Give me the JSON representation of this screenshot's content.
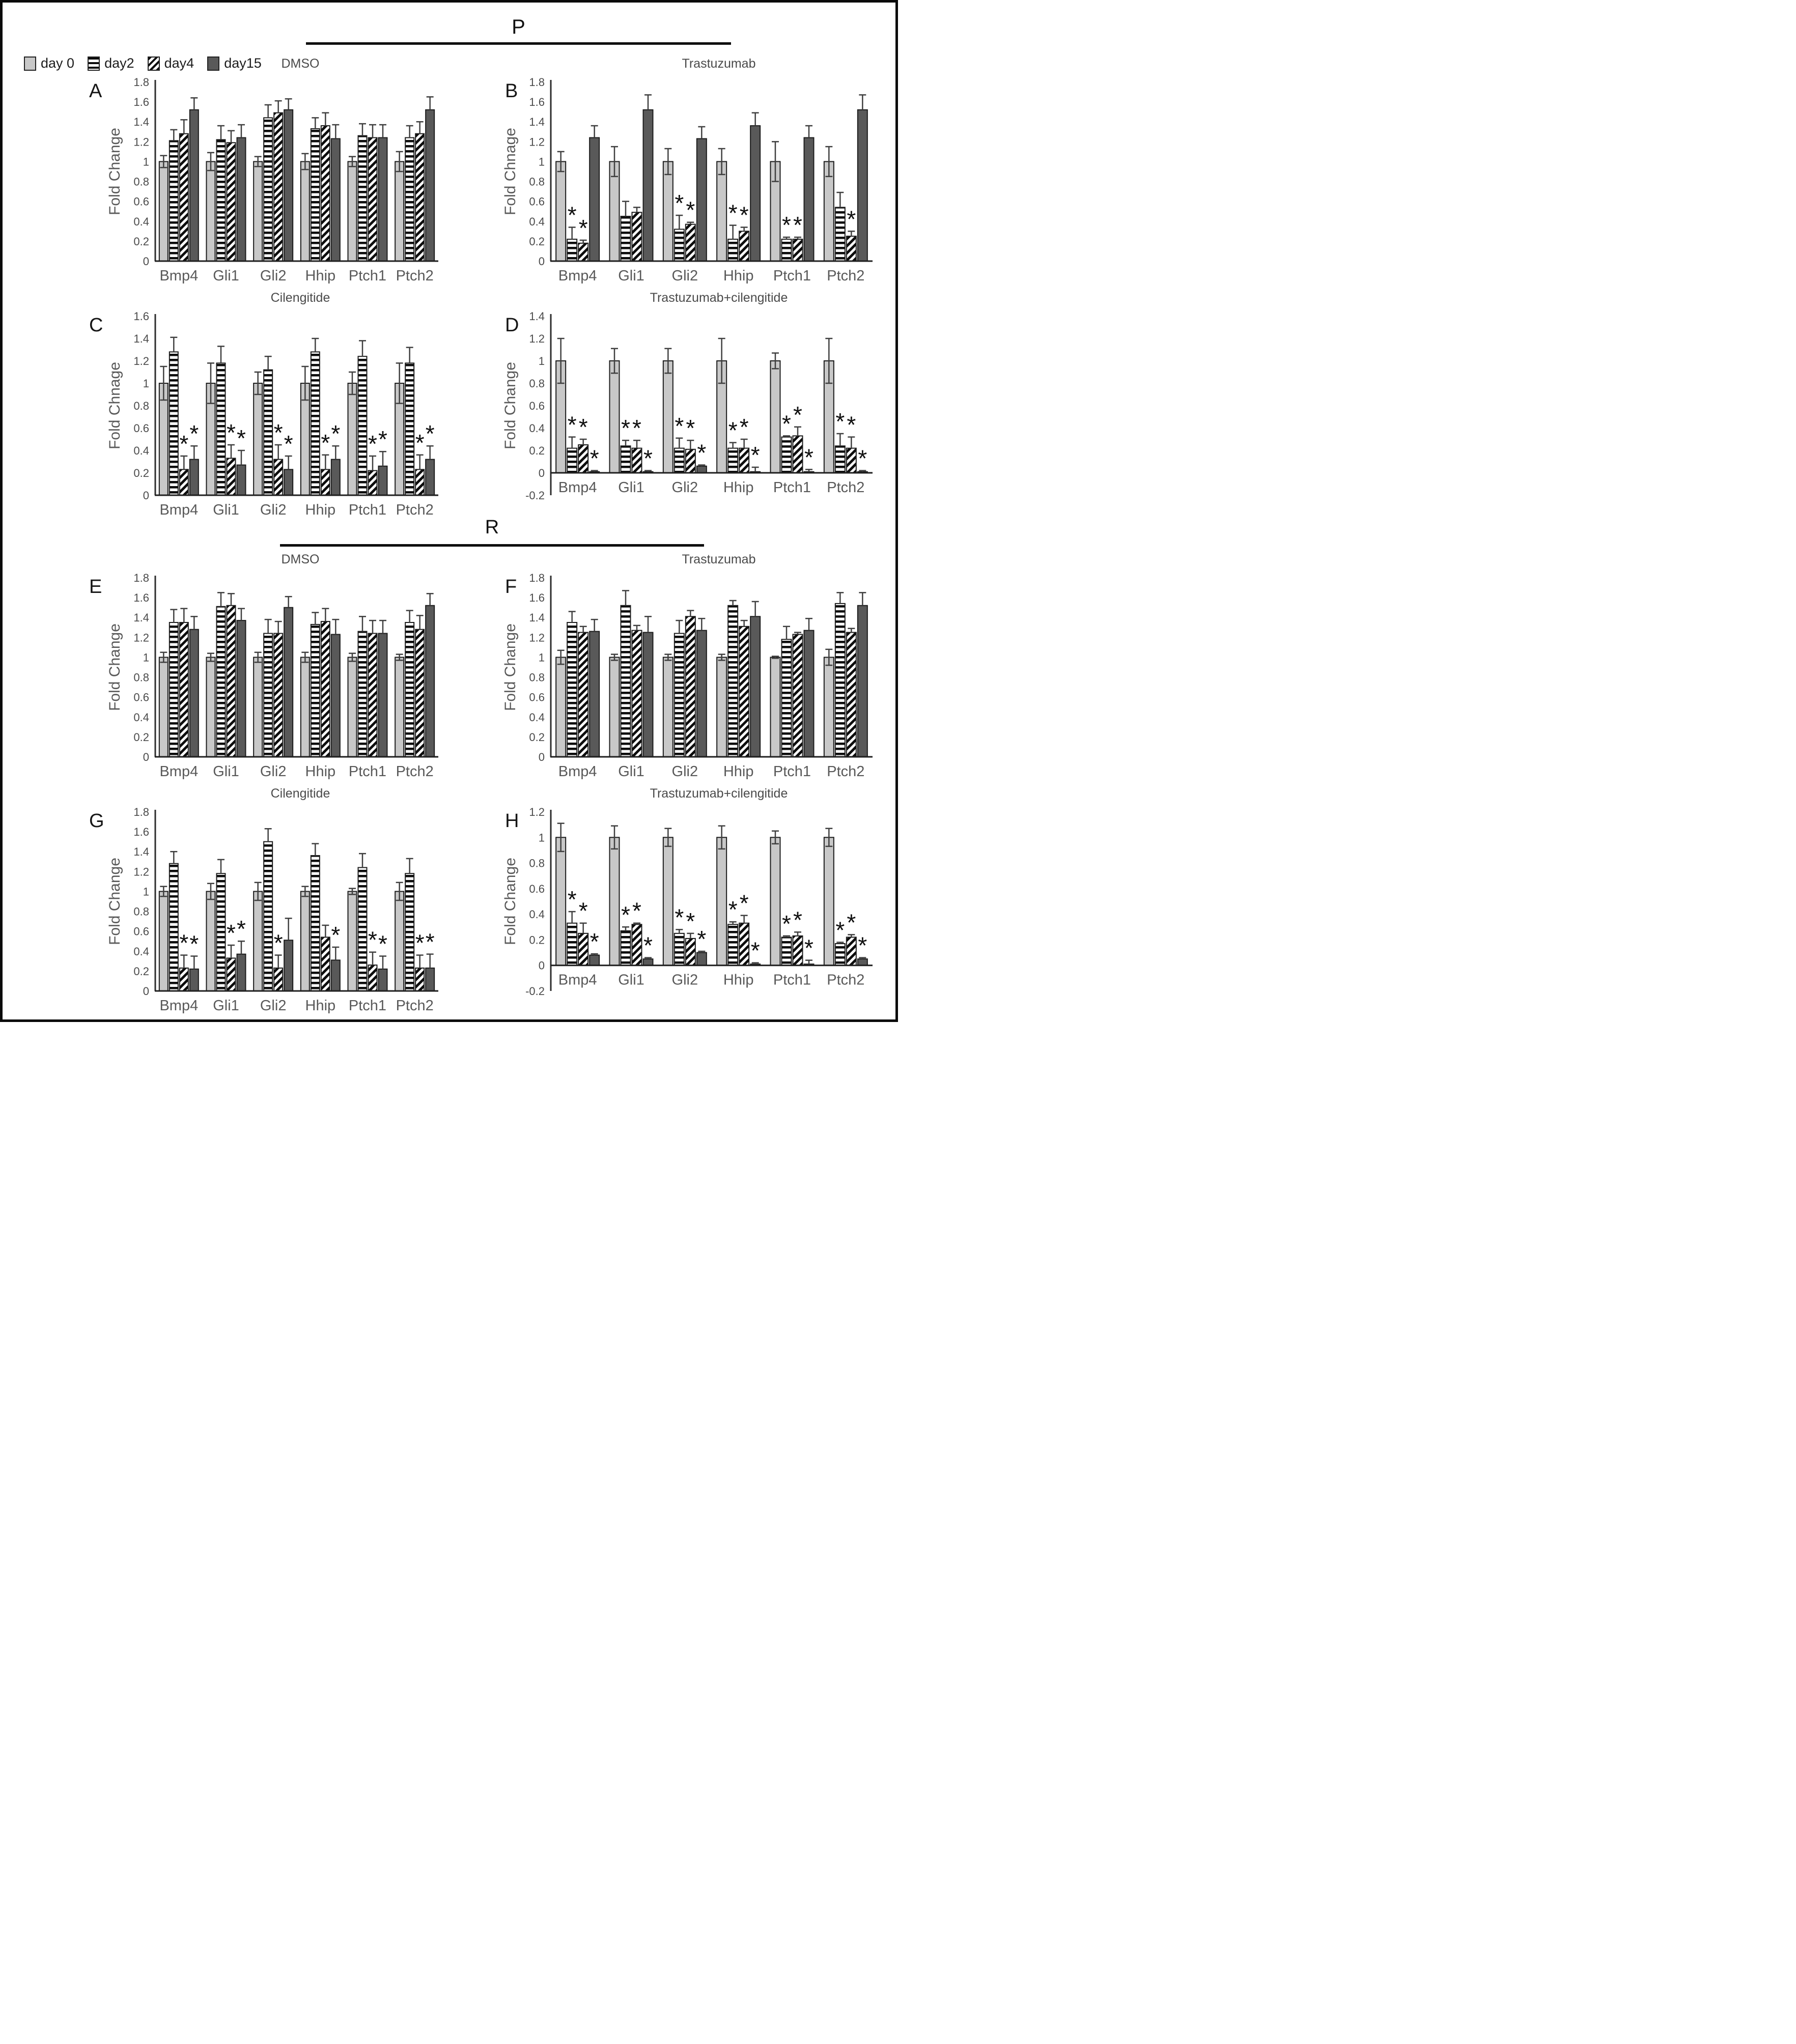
{
  "legend": {
    "items": [
      {
        "label": "day 0",
        "swatch": "solid-light"
      },
      {
        "label": "day2",
        "swatch": "horizontal-stripes"
      },
      {
        "label": "day4",
        "swatch": "diagonal-stripes"
      },
      {
        "label": "day15",
        "swatch": "solid-dark"
      }
    ]
  },
  "sections": [
    {
      "label": "P"
    },
    {
      "label": "R"
    }
  ],
  "colors": {
    "day0_fill": "#c8c8c8",
    "day15_fill": "#595959",
    "stripe": "#0d0d0d",
    "bar_border": "#1c1c1c",
    "axis": "#2d2d2d",
    "error_bar": "#3f3f3f",
    "tick_text": "#4a4a4a",
    "label_text": "#595959",
    "star": "#101010"
  },
  "chart_data": [
    {
      "id": "A",
      "title": "DMSO",
      "type": "bar",
      "ylabel": "Fold Change",
      "ylim": [
        0,
        1.8
      ],
      "ystep": 0.2,
      "grid": false,
      "legend_position": "top-left-figure",
      "categories": [
        "Bmp4",
        "Gli1",
        "Gli2",
        "Hhip",
        "Ptch1",
        "Ptch2"
      ],
      "series": [
        {
          "name": "day 0",
          "values": [
            1.0,
            1.0,
            1.0,
            1.0,
            1.0,
            1.0
          ],
          "errors": [
            0.06,
            0.09,
            0.05,
            0.08,
            0.05,
            0.1
          ],
          "sig": [
            0,
            0,
            0,
            0,
            0,
            0
          ]
        },
        {
          "name": "day2",
          "values": [
            1.21,
            1.22,
            1.44,
            1.33,
            1.26,
            1.24
          ],
          "errors": [
            0.11,
            0.14,
            0.13,
            0.11,
            0.12,
            0.12
          ],
          "sig": [
            0,
            0,
            0,
            0,
            0,
            0
          ]
        },
        {
          "name": "day4",
          "values": [
            1.28,
            1.19,
            1.49,
            1.36,
            1.24,
            1.28
          ],
          "errors": [
            0.14,
            0.12,
            0.12,
            0.13,
            0.13,
            0.12
          ],
          "sig": [
            0,
            0,
            0,
            0,
            0,
            0
          ]
        },
        {
          "name": "day15",
          "values": [
            1.52,
            1.24,
            1.52,
            1.23,
            1.24,
            1.52
          ],
          "errors": [
            0.12,
            0.13,
            0.11,
            0.14,
            0.13,
            0.13
          ],
          "sig": [
            0,
            0,
            0,
            0,
            0,
            0
          ]
        }
      ]
    },
    {
      "id": "B",
      "title": "Trastuzumab",
      "type": "bar",
      "ylabel": "Fold Chnage",
      "ylim": [
        0,
        1.8
      ],
      "ystep": 0.2,
      "grid": false,
      "categories": [
        "Bmp4",
        "Gli1",
        "Gli2",
        "Hhip",
        "Ptch1",
        "Ptch2"
      ],
      "series": [
        {
          "name": "day 0",
          "values": [
            1.0,
            1.0,
            1.0,
            1.0,
            1.0,
            1.0
          ],
          "errors": [
            0.1,
            0.15,
            0.13,
            0.13,
            0.2,
            0.15
          ],
          "sig": [
            0,
            0,
            0,
            0,
            0,
            0
          ]
        },
        {
          "name": "day2",
          "values": [
            0.22,
            0.45,
            0.32,
            0.22,
            0.22,
            0.54
          ],
          "errors": [
            0.12,
            0.15,
            0.14,
            0.14,
            0.02,
            0.15
          ],
          "sig": [
            1,
            0,
            1,
            1,
            1,
            0
          ]
        },
        {
          "name": "day4",
          "values": [
            0.18,
            0.49,
            0.37,
            0.3,
            0.22,
            0.25
          ],
          "errors": [
            0.03,
            0.05,
            0.02,
            0.04,
            0.02,
            0.05
          ],
          "sig": [
            1,
            0,
            1,
            1,
            1,
            1
          ]
        },
        {
          "name": "day15",
          "values": [
            1.24,
            1.52,
            1.23,
            1.36,
            1.24,
            1.52
          ],
          "errors": [
            0.12,
            0.15,
            0.12,
            0.13,
            0.12,
            0.15
          ],
          "sig": [
            0,
            0,
            0,
            0,
            0,
            0
          ]
        }
      ]
    },
    {
      "id": "C",
      "title": "Cilengitide",
      "type": "bar",
      "ylabel": "Fold Chnage",
      "ylim": [
        0,
        1.6
      ],
      "ystep": 0.2,
      "grid": false,
      "categories": [
        "Bmp4",
        "Gli1",
        "Gli2",
        "Hhip",
        "Ptch1",
        "Ptch2"
      ],
      "series": [
        {
          "name": "day 0",
          "values": [
            1.0,
            1.0,
            1.0,
            1.0,
            1.0,
            1.0
          ],
          "errors": [
            0.15,
            0.18,
            0.1,
            0.15,
            0.1,
            0.18
          ],
          "sig": [
            0,
            0,
            0,
            0,
            0,
            0
          ]
        },
        {
          "name": "day2",
          "values": [
            1.28,
            1.18,
            1.12,
            1.28,
            1.24,
            1.18
          ],
          "errors": [
            0.13,
            0.15,
            0.12,
            0.12,
            0.14,
            0.14
          ],
          "sig": [
            0,
            0,
            0,
            0,
            0,
            0
          ]
        },
        {
          "name": "day4",
          "values": [
            0.23,
            0.33,
            0.32,
            0.23,
            0.22,
            0.23
          ],
          "errors": [
            0.12,
            0.12,
            0.13,
            0.13,
            0.13,
            0.13
          ],
          "sig": [
            1,
            1,
            1,
            1,
            1,
            1
          ]
        },
        {
          "name": "day15",
          "values": [
            0.32,
            0.27,
            0.23,
            0.32,
            0.26,
            0.32
          ],
          "errors": [
            0.12,
            0.13,
            0.12,
            0.12,
            0.13,
            0.12
          ],
          "sig": [
            1,
            1,
            1,
            1,
            1,
            1
          ]
        }
      ]
    },
    {
      "id": "D",
      "title": "Trastuzumab+cilengitide",
      "type": "bar",
      "ylabel": "Fold Change",
      "ylim": [
        -0.2,
        1.4
      ],
      "ystep": 0.2,
      "grid": false,
      "categories": [
        "Bmp4",
        "Gli1",
        "Gli2",
        "Hhip",
        "Ptch1",
        "Ptch2"
      ],
      "series": [
        {
          "name": "day 0",
          "values": [
            1.0,
            1.0,
            1.0,
            1.0,
            1.0,
            1.0
          ],
          "errors": [
            0.2,
            0.11,
            0.11,
            0.2,
            0.07,
            0.2
          ],
          "sig": [
            0,
            0,
            0,
            0,
            0,
            0
          ]
        },
        {
          "name": "day2",
          "values": [
            0.22,
            0.24,
            0.22,
            0.22,
            0.32,
            0.24
          ],
          "errors": [
            0.1,
            0.05,
            0.09,
            0.05,
            0.01,
            0.11
          ],
          "sig": [
            1,
            1,
            1,
            1,
            1,
            1
          ]
        },
        {
          "name": "day4",
          "values": [
            0.25,
            0.22,
            0.21,
            0.22,
            0.33,
            0.22
          ],
          "errors": [
            0.05,
            0.07,
            0.08,
            0.08,
            0.08,
            0.1
          ],
          "sig": [
            1,
            1,
            1,
            1,
            1,
            1
          ]
        },
        {
          "name": "day15",
          "values": [
            0.01,
            0.01,
            0.06,
            0.01,
            0.01,
            0.01
          ],
          "errors": [
            0.01,
            0.01,
            0.01,
            0.04,
            0.02,
            0.01
          ],
          "sig": [
            1,
            1,
            1,
            1,
            1,
            1
          ]
        }
      ]
    },
    {
      "id": "E",
      "title": "DMSO",
      "type": "bar",
      "ylabel": "Fold Change",
      "ylim": [
        0,
        1.8
      ],
      "ystep": 0.2,
      "grid": false,
      "categories": [
        "Bmp4",
        "Gli1",
        "Gli2",
        "Hhip",
        "Ptch1",
        "Ptch2"
      ],
      "series": [
        {
          "name": "day 0",
          "values": [
            1.0,
            1.0,
            1.0,
            1.0,
            1.0,
            1.0
          ],
          "errors": [
            0.05,
            0.04,
            0.05,
            0.05,
            0.04,
            0.03
          ],
          "sig": [
            0,
            0,
            0,
            0,
            0,
            0
          ]
        },
        {
          "name": "day2",
          "values": [
            1.35,
            1.51,
            1.24,
            1.33,
            1.26,
            1.35
          ],
          "errors": [
            0.13,
            0.14,
            0.14,
            0.12,
            0.15,
            0.12
          ],
          "sig": [
            0,
            0,
            0,
            0,
            0,
            0
          ]
        },
        {
          "name": "day4",
          "values": [
            1.35,
            1.52,
            1.24,
            1.36,
            1.24,
            1.28
          ],
          "errors": [
            0.14,
            0.12,
            0.12,
            0.13,
            0.13,
            0.14
          ],
          "sig": [
            0,
            0,
            0,
            0,
            0,
            0
          ]
        },
        {
          "name": "day15",
          "values": [
            1.28,
            1.37,
            1.5,
            1.23,
            1.24,
            1.52
          ],
          "errors": [
            0.13,
            0.12,
            0.11,
            0.15,
            0.13,
            0.12
          ],
          "sig": [
            0,
            0,
            0,
            0,
            0,
            0
          ]
        }
      ]
    },
    {
      "id": "F",
      "title": "Trastuzumab",
      "type": "bar",
      "ylabel": "Fold Change",
      "ylim": [
        0,
        1.8
      ],
      "ystep": 0.2,
      "grid": false,
      "categories": [
        "Bmp4",
        "Gli1",
        "Gli2",
        "Hhip",
        "Ptch1",
        "Ptch2"
      ],
      "series": [
        {
          "name": "day 0",
          "values": [
            1.0,
            1.0,
            1.0,
            1.0,
            1.0,
            1.0
          ],
          "errors": [
            0.07,
            0.03,
            0.03,
            0.03,
            0.01,
            0.08
          ],
          "sig": [
            0,
            0,
            0,
            0,
            0,
            0
          ]
        },
        {
          "name": "day2",
          "values": [
            1.35,
            1.52,
            1.24,
            1.52,
            1.18,
            1.54
          ],
          "errors": [
            0.11,
            0.15,
            0.13,
            0.05,
            0.13,
            0.11
          ],
          "sig": [
            0,
            0,
            0,
            0,
            0,
            0
          ]
        },
        {
          "name": "day4",
          "values": [
            1.25,
            1.27,
            1.41,
            1.31,
            1.23,
            1.25
          ],
          "errors": [
            0.06,
            0.05,
            0.06,
            0.06,
            0.02,
            0.04
          ],
          "sig": [
            0,
            0,
            0,
            0,
            0,
            0
          ]
        },
        {
          "name": "day15",
          "values": [
            1.26,
            1.25,
            1.27,
            1.41,
            1.27,
            1.52
          ],
          "errors": [
            0.12,
            0.16,
            0.12,
            0.15,
            0.12,
            0.13
          ],
          "sig": [
            0,
            0,
            0,
            0,
            0,
            0
          ]
        }
      ]
    },
    {
      "id": "G",
      "title": "Cilengitide",
      "type": "bar",
      "ylabel": "Fold Change",
      "ylim": [
        0,
        1.8
      ],
      "ystep": 0.2,
      "grid": false,
      "categories": [
        "Bmp4",
        "Gli1",
        "Gli2",
        "Hhip",
        "Ptch1",
        "Ptch2"
      ],
      "series": [
        {
          "name": "day 0",
          "values": [
            1.0,
            1.0,
            1.0,
            1.0,
            1.0,
            1.0
          ],
          "errors": [
            0.05,
            0.08,
            0.09,
            0.05,
            0.03,
            0.09
          ],
          "sig": [
            0,
            0,
            0,
            0,
            0,
            0
          ]
        },
        {
          "name": "day2",
          "values": [
            1.28,
            1.18,
            1.5,
            1.36,
            1.24,
            1.18
          ],
          "errors": [
            0.12,
            0.14,
            0.13,
            0.12,
            0.14,
            0.15
          ],
          "sig": [
            0,
            0,
            0,
            0,
            0,
            0
          ]
        },
        {
          "name": "day4",
          "values": [
            0.23,
            0.33,
            0.23,
            0.54,
            0.26,
            0.23
          ],
          "errors": [
            0.13,
            0.13,
            0.13,
            0.12,
            0.13,
            0.13
          ],
          "sig": [
            1,
            1,
            1,
            0,
            1,
            1
          ]
        },
        {
          "name": "day15",
          "values": [
            0.22,
            0.37,
            0.51,
            0.31,
            0.22,
            0.23
          ],
          "errors": [
            0.13,
            0.13,
            0.22,
            0.13,
            0.13,
            0.14
          ],
          "sig": [
            1,
            1,
            0,
            1,
            1,
            1
          ]
        }
      ]
    },
    {
      "id": "H",
      "title": "Trastuzumab+cilengitide",
      "type": "bar",
      "ylabel": "Fold Change",
      "ylim": [
        -0.2,
        1.2
      ],
      "ystep": 0.2,
      "grid": false,
      "categories": [
        "Bmp4",
        "Gli1",
        "Gli2",
        "Hhip",
        "Ptch1",
        "Ptch2"
      ],
      "series": [
        {
          "name": "day 0",
          "values": [
            1.0,
            1.0,
            1.0,
            1.0,
            1.0,
            1.0
          ],
          "errors": [
            0.11,
            0.09,
            0.07,
            0.09,
            0.05,
            0.07
          ],
          "sig": [
            0,
            0,
            0,
            0,
            0,
            0
          ]
        },
        {
          "name": "day2",
          "values": [
            0.33,
            0.27,
            0.25,
            0.32,
            0.22,
            0.17
          ],
          "errors": [
            0.09,
            0.03,
            0.03,
            0.02,
            0.01,
            0.01
          ],
          "sig": [
            1,
            1,
            1,
            1,
            1,
            1
          ]
        },
        {
          "name": "day4",
          "values": [
            0.25,
            0.32,
            0.21,
            0.33,
            0.23,
            0.22
          ],
          "errors": [
            0.08,
            0.01,
            0.04,
            0.06,
            0.03,
            0.02
          ],
          "sig": [
            1,
            1,
            1,
            1,
            1,
            1
          ]
        },
        {
          "name": "day15",
          "values": [
            0.08,
            0.05,
            0.1,
            0.01,
            0.01,
            0.05
          ],
          "errors": [
            0.01,
            0.01,
            0.01,
            0.01,
            0.03,
            0.01
          ],
          "sig": [
            1,
            1,
            1,
            1,
            1,
            1
          ]
        }
      ]
    }
  ]
}
